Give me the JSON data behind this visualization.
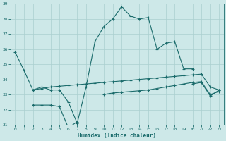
{
  "bg_color": "#cde8e8",
  "line_color": "#1a6b6b",
  "grid_color": "#aacfcf",
  "xlim": [
    -0.5,
    23.5
  ],
  "ylim": [
    31,
    39
  ],
  "yticks": [
    31,
    32,
    33,
    34,
    35,
    36,
    37,
    38,
    39
  ],
  "xticks": [
    0,
    1,
    2,
    3,
    4,
    5,
    6,
    7,
    8,
    9,
    10,
    11,
    12,
    13,
    14,
    15,
    16,
    17,
    18,
    19,
    20,
    21,
    22,
    23
  ],
  "xlabel": "Humidex (Indice chaleur)",
  "marker": "+",
  "markersize": 3,
  "linewidth": 0.8,
  "lines": [
    {
      "x": [
        0,
        1,
        2,
        3,
        4,
        5,
        6,
        7,
        8,
        9,
        10,
        11,
        12,
        13,
        14,
        15,
        16,
        17,
        18,
        19,
        20
      ],
      "y": [
        35.8,
        34.6,
        33.3,
        33.5,
        33.3,
        33.3,
        32.5,
        31.1,
        33.5,
        36.5,
        37.5,
        38.0,
        38.8,
        38.2,
        38.0,
        38.1,
        36.0,
        36.4,
        36.5,
        34.7,
        34.7
      ]
    },
    {
      "x": [
        2,
        3,
        4,
        5,
        6,
        7,
        8,
        9,
        10,
        11,
        12,
        13,
        14,
        15,
        16,
        17,
        18,
        19,
        20,
        21,
        22,
        23
      ],
      "y": [
        33.3,
        33.4,
        33.5,
        33.55,
        33.6,
        33.65,
        33.7,
        33.75,
        33.8,
        33.85,
        33.9,
        33.95,
        34.0,
        34.05,
        34.1,
        34.15,
        34.2,
        34.25,
        34.3,
        34.35,
        33.5,
        33.3
      ]
    },
    {
      "x": [
        2,
        3,
        4,
        5,
        6,
        7
      ],
      "y": [
        32.3,
        32.3,
        32.3,
        32.2,
        30.8,
        31.2
      ]
    },
    {
      "x": [
        20,
        21,
        22,
        23
      ],
      "y": [
        33.7,
        33.8,
        32.9,
        33.3
      ]
    },
    {
      "x": [
        10,
        11,
        12,
        13,
        14,
        15,
        16,
        17,
        18,
        19,
        20,
        21,
        22,
        23
      ],
      "y": [
        33.0,
        33.1,
        33.15,
        33.2,
        33.25,
        33.3,
        33.4,
        33.5,
        33.6,
        33.7,
        33.8,
        33.85,
        33.0,
        33.2
      ]
    }
  ]
}
